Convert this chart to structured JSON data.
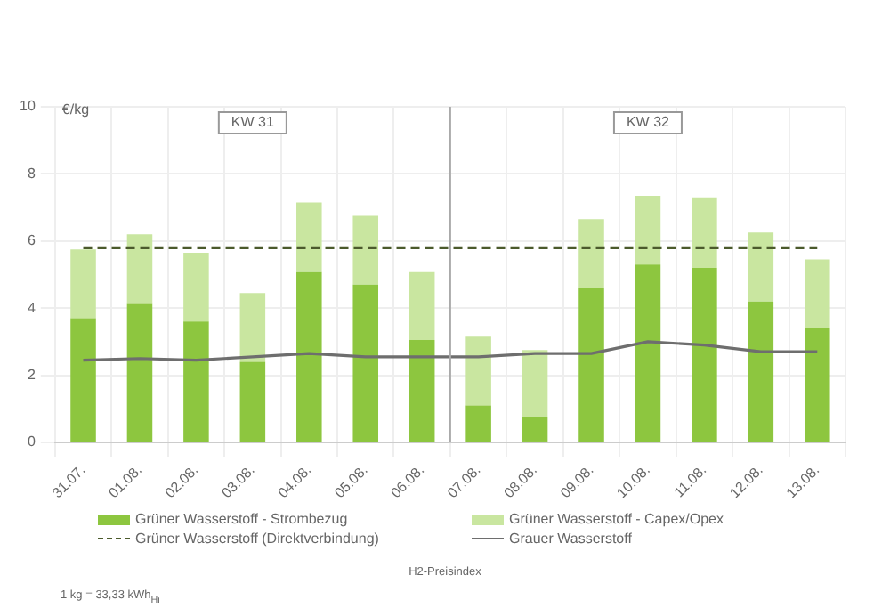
{
  "chart_data": {
    "type": "bar",
    "stacked": true,
    "ylabel": "€/kg",
    "categories": [
      "31.07.",
      "01.08.",
      "02.08.",
      "03.08.",
      "04.08.",
      "05.08.",
      "06.08.",
      "07.08.",
      "08.08.",
      "09.08.",
      "10.08.",
      "11.08.",
      "12.08.",
      "13.08."
    ],
    "series": [
      {
        "name": "Grüner Wasserstoff - Strombezug",
        "color": "#8dc63f",
        "values": [
          3.7,
          4.15,
          3.6,
          2.4,
          5.1,
          4.7,
          3.05,
          1.1,
          0.75,
          4.6,
          5.3,
          5.2,
          4.2,
          3.4
        ]
      },
      {
        "name": "Grüner Wasserstoff - Capex/Opex",
        "color": "#c9e6a0",
        "values": [
          2.05,
          2.05,
          2.05,
          2.05,
          2.05,
          2.05,
          2.05,
          2.05,
          2.0,
          2.05,
          2.05,
          2.1,
          2.05,
          2.05
        ]
      },
      {
        "name": "Grüner Wasserstoff (Direktverbindung)",
        "type": "line",
        "line_style": "dashed",
        "color": "#4b5a2c",
        "values": [
          5.8,
          5.8,
          5.8,
          5.8,
          5.8,
          5.8,
          5.8,
          5.8,
          5.8,
          5.8,
          5.8,
          5.8,
          5.8,
          5.8
        ]
      },
      {
        "name": "Grauer Wasserstoff",
        "type": "line",
        "line_style": "solid",
        "color": "#6e6e6e",
        "values": [
          2.45,
          2.5,
          2.45,
          2.55,
          2.65,
          2.55,
          2.55,
          2.55,
          2.65,
          2.65,
          3.0,
          2.9,
          2.7,
          2.7
        ]
      }
    ],
    "ylim": [
      0,
      10
    ],
    "yticks": [
      0,
      2,
      4,
      6,
      8,
      10
    ],
    "grid": true,
    "legend": "bottom",
    "marker": "none",
    "ref_lines": [
      {
        "axis": "x",
        "value": "07.08.",
        "color": "#aaaaaa"
      }
    ],
    "annotations": [
      "KW 31",
      "KW 32",
      "H2-Preisindex",
      "1 kg = 33,33 kWh$_{Hi}$"
    ]
  }
}
